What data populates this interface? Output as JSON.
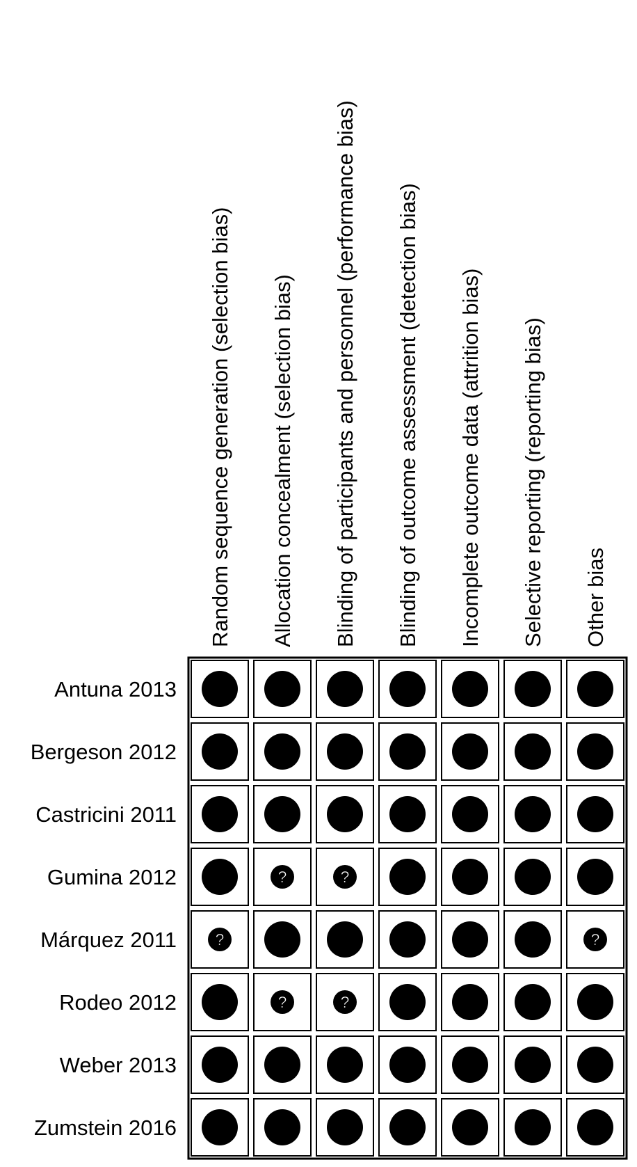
{
  "chart_data": {
    "type": "table",
    "columns": [
      "Random sequence generation (selection bias)",
      "Allocation concealment (selection bias)",
      "Blinding of participants and personnel (performance bias)",
      "Blinding of outcome assessment (detection bias)",
      "Incomplete outcome data (attrition bias)",
      "Selective reporting (reporting bias)",
      "Other bias"
    ],
    "rows": [
      {
        "study": "Antuna 2013",
        "judgements": [
          "low",
          "low",
          "low",
          "low",
          "low",
          "low",
          "low"
        ]
      },
      {
        "study": "Bergeson 2012",
        "judgements": [
          "low",
          "low",
          "low",
          "low",
          "low",
          "low",
          "low"
        ]
      },
      {
        "study": "Castricini 2011",
        "judgements": [
          "low",
          "low",
          "low",
          "low",
          "low",
          "low",
          "low"
        ]
      },
      {
        "study": "Gumina 2012",
        "judgements": [
          "low",
          "unclear",
          "unclear",
          "low",
          "low",
          "low",
          "low"
        ]
      },
      {
        "study": "Márquez 2011",
        "judgements": [
          "unclear",
          "low",
          "low",
          "low",
          "low",
          "low",
          "unclear"
        ]
      },
      {
        "study": "Rodeo 2012",
        "judgements": [
          "low",
          "unclear",
          "unclear",
          "low",
          "low",
          "low",
          "low"
        ]
      },
      {
        "study": "Weber 2013",
        "judgements": [
          "low",
          "low",
          "low",
          "low",
          "low",
          "low",
          "low"
        ]
      },
      {
        "study": "Zumstein 2016",
        "judgements": [
          "low",
          "low",
          "low",
          "low",
          "low",
          "low",
          "low"
        ]
      }
    ],
    "unclear_symbol": "?",
    "colors": {
      "low": "#000000",
      "unclear": "#000000",
      "grid": "#000000",
      "background": "#ffffff"
    }
  }
}
